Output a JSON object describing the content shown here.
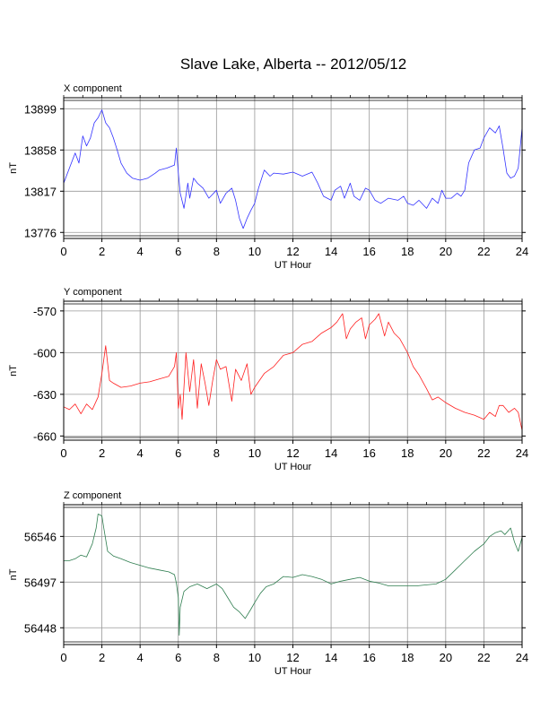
{
  "page_title": "Slave Lake, Alberta -- 2012/05/12",
  "colors": {
    "x": "#3333ff",
    "y": "#ff2020",
    "z": "#2e7d4f",
    "grid": "#999999",
    "frame": "#000000"
  },
  "chart_data": [
    {
      "type": "line",
      "title": "X component",
      "xlabel": "UT Hour",
      "ylabel": "nT",
      "xlim": [
        0,
        24
      ],
      "ylim": [
        13770,
        13910
      ],
      "xticks": [
        0,
        2,
        4,
        6,
        8,
        10,
        12,
        14,
        16,
        18,
        20,
        22,
        24
      ],
      "yticks": [
        13776,
        13817,
        13858,
        13899
      ],
      "grid": true,
      "color_key": "x",
      "series": [
        {
          "x": [
            0,
            0.3,
            0.6,
            0.8,
            1.0,
            1.2,
            1.4,
            1.6,
            1.8,
            2.0,
            2.2,
            2.4,
            2.6,
            2.8,
            3.0,
            3.3,
            3.6,
            4.0,
            4.4,
            4.8,
            5.0,
            5.4,
            5.8,
            5.9,
            6.0,
            6.1,
            6.3,
            6.5,
            6.6,
            6.8,
            7.0,
            7.3,
            7.6,
            8.0,
            8.2,
            8.5,
            8.8,
            9.0,
            9.2,
            9.4,
            9.6,
            9.8,
            10.0,
            10.2,
            10.5,
            10.8,
            11.0,
            11.5,
            12.0,
            12.5,
            13.0,
            13.3,
            13.6,
            14.0,
            14.2,
            14.5,
            14.7,
            15.0,
            15.2,
            15.5,
            15.8,
            16.0,
            16.3,
            16.6,
            17.0,
            17.5,
            17.8,
            18.0,
            18.3,
            18.6,
            19.0,
            19.3,
            19.6,
            19.8,
            20.0,
            20.3,
            20.6,
            20.8,
            21.0,
            21.2,
            21.5,
            21.8,
            22.0,
            22.3,
            22.6,
            22.8,
            23.0,
            23.2,
            23.4,
            23.6,
            23.8,
            24.0
          ],
          "y": [
            13825,
            13840,
            13855,
            13845,
            13872,
            13862,
            13870,
            13885,
            13890,
            13898,
            13885,
            13880,
            13870,
            13858,
            13845,
            13835,
            13830,
            13828,
            13830,
            13835,
            13838,
            13840,
            13843,
            13860,
            13835,
            13815,
            13800,
            13825,
            13810,
            13830,
            13825,
            13820,
            13810,
            13818,
            13805,
            13815,
            13820,
            13808,
            13790,
            13780,
            13790,
            13798,
            13805,
            13820,
            13838,
            13832,
            13835,
            13834,
            13836,
            13832,
            13836,
            13825,
            13812,
            13808,
            13818,
            13822,
            13810,
            13825,
            13812,
            13808,
            13820,
            13818,
            13808,
            13805,
            13810,
            13808,
            13812,
            13805,
            13803,
            13808,
            13800,
            13810,
            13805,
            13818,
            13810,
            13810,
            13815,
            13812,
            13818,
            13845,
            13858,
            13860,
            13870,
            13880,
            13875,
            13882,
            13860,
            13835,
            13830,
            13832,
            13840,
            13880
          ]
        }
      ]
    },
    {
      "type": "line",
      "title": "Y component",
      "xlabel": "UT Hour",
      "ylabel": "nT",
      "xlim": [
        0,
        24
      ],
      "ylim": [
        -663,
        -563
      ],
      "xticks": [
        0,
        2,
        4,
        6,
        8,
        10,
        12,
        14,
        16,
        18,
        20,
        22,
        24
      ],
      "yticks": [
        -570,
        -600,
        -630,
        -660
      ],
      "grid": true,
      "color_key": "y",
      "series": [
        {
          "x": [
            0,
            0.3,
            0.6,
            0.9,
            1.2,
            1.5,
            1.8,
            2.0,
            2.2,
            2.4,
            2.6,
            3.0,
            3.5,
            4.0,
            4.5,
            5.0,
            5.5,
            5.8,
            5.9,
            6.0,
            6.1,
            6.2,
            6.4,
            6.6,
            6.8,
            7.0,
            7.2,
            7.4,
            7.6,
            7.8,
            8.0,
            8.2,
            8.5,
            8.8,
            9.0,
            9.3,
            9.6,
            9.8,
            10.0,
            10.5,
            11.0,
            11.5,
            12.0,
            12.5,
            13.0,
            13.5,
            14.0,
            14.3,
            14.6,
            14.8,
            15.0,
            15.3,
            15.6,
            15.8,
            16.0,
            16.3,
            16.5,
            16.8,
            17.0,
            17.3,
            17.6,
            18.0,
            18.3,
            18.6,
            19.0,
            19.3,
            19.6,
            20.0,
            20.5,
            21.0,
            21.5,
            22.0,
            22.3,
            22.6,
            22.8,
            23.0,
            23.3,
            23.6,
            23.8,
            24.0
          ],
          "y": [
            -639,
            -641,
            -637,
            -644,
            -637,
            -641,
            -632,
            -615,
            -595,
            -620,
            -622,
            -625,
            -624,
            -622,
            -621,
            -619,
            -617,
            -610,
            -600,
            -640,
            -630,
            -648,
            -600,
            -628,
            -605,
            -640,
            -608,
            -622,
            -638,
            -620,
            -605,
            -612,
            -610,
            -635,
            -612,
            -620,
            -608,
            -630,
            -625,
            -615,
            -610,
            -602,
            -600,
            -594,
            -592,
            -586,
            -582,
            -578,
            -572,
            -590,
            -583,
            -578,
            -575,
            -590,
            -580,
            -576,
            -572,
            -588,
            -578,
            -586,
            -590,
            -600,
            -610,
            -616,
            -626,
            -634,
            -632,
            -636,
            -640,
            -643,
            -645,
            -648,
            -643,
            -646,
            -638,
            -638,
            -643,
            -640,
            -643,
            -656
          ]
        }
      ]
    },
    {
      "type": "line",
      "title": "Z component",
      "xlabel": "UT Hour",
      "ylabel": "nT",
      "xlim": [
        0,
        24
      ],
      "ylim": [
        56430,
        56580
      ],
      "xticks": [
        0,
        2,
        4,
        6,
        8,
        10,
        12,
        14,
        16,
        18,
        20,
        22,
        24
      ],
      "yticks": [
        56448,
        56497,
        56546
      ],
      "grid": true,
      "color_key": "z",
      "series": [
        {
          "x": [
            0,
            0.3,
            0.6,
            0.9,
            1.2,
            1.5,
            1.7,
            1.8,
            2.0,
            2.1,
            2.3,
            2.6,
            3.0,
            3.5,
            4.0,
            4.5,
            5.0,
            5.5,
            5.8,
            5.9,
            6.0,
            6.05,
            6.1,
            6.3,
            6.6,
            7.0,
            7.5,
            8.0,
            8.3,
            8.6,
            8.9,
            9.2,
            9.5,
            9.8,
            10.0,
            10.3,
            10.6,
            11.0,
            11.5,
            12.0,
            12.5,
            13.0,
            13.5,
            14.0,
            14.5,
            15.0,
            15.5,
            16.0,
            16.5,
            17.0,
            17.5,
            18.0,
            18.5,
            19.0,
            19.5,
            20.0,
            20.5,
            21.0,
            21.5,
            22.0,
            22.3,
            22.6,
            22.9,
            23.1,
            23.4,
            23.6,
            23.8,
            24.0
          ],
          "y": [
            56520,
            56520,
            56522,
            56526,
            56524,
            56538,
            56555,
            56570,
            56568,
            56555,
            56530,
            56525,
            56522,
            56518,
            56515,
            56512,
            56510,
            56508,
            56505,
            56496,
            56480,
            56440,
            56470,
            56487,
            56492,
            56495,
            56490,
            56495,
            56490,
            56480,
            56470,
            56465,
            56458,
            56468,
            56475,
            56485,
            56492,
            56495,
            56503,
            56502,
            56505,
            56503,
            56500,
            56495,
            56498,
            56500,
            56502,
            56498,
            56496,
            56493,
            56493,
            56493,
            56493,
            56494,
            56495,
            56500,
            56510,
            56520,
            56530,
            56538,
            56546,
            56550,
            56552,
            56548,
            56555,
            56540,
            56530,
            56545
          ]
        }
      ]
    }
  ]
}
